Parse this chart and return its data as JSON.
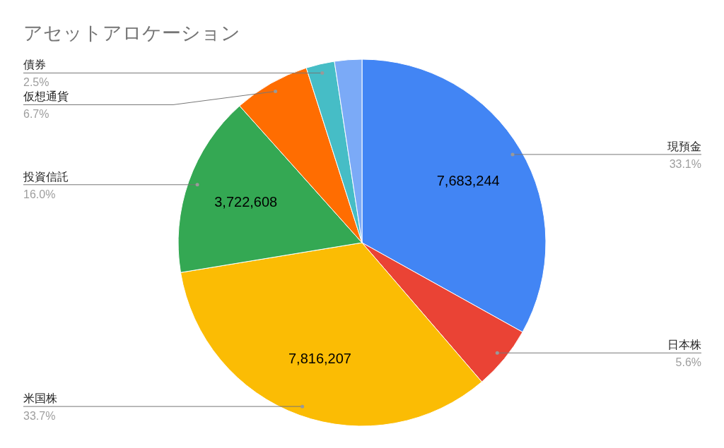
{
  "chart_data": {
    "type": "pie",
    "title": "アセットアロケーション",
    "categories": [
      "現預金",
      "日本株",
      "米国株",
      "投資信託",
      "仮想通貨",
      "債券",
      null
    ],
    "values": [
      33.1,
      5.6,
      33.7,
      16.0,
      6.7,
      2.5,
      2.4
    ],
    "colors": [
      "#4285f4",
      "#ea4335",
      "#fbbc04",
      "#34a853",
      "#ff6d01",
      "#46bdc6",
      "#7baaf7"
    ],
    "value_labels": [
      "33.1%",
      "5.6%",
      "33.7%",
      "16.0%",
      "6.7%",
      "2.5%",
      null
    ],
    "annotations": [
      {
        "text": "7,683,244",
        "x": "現預金"
      },
      {
        "text": "7,816,207",
        "x": "米国株"
      },
      {
        "text": "3,722,608",
        "x": "投資信託"
      }
    ],
    "legend": false
  }
}
